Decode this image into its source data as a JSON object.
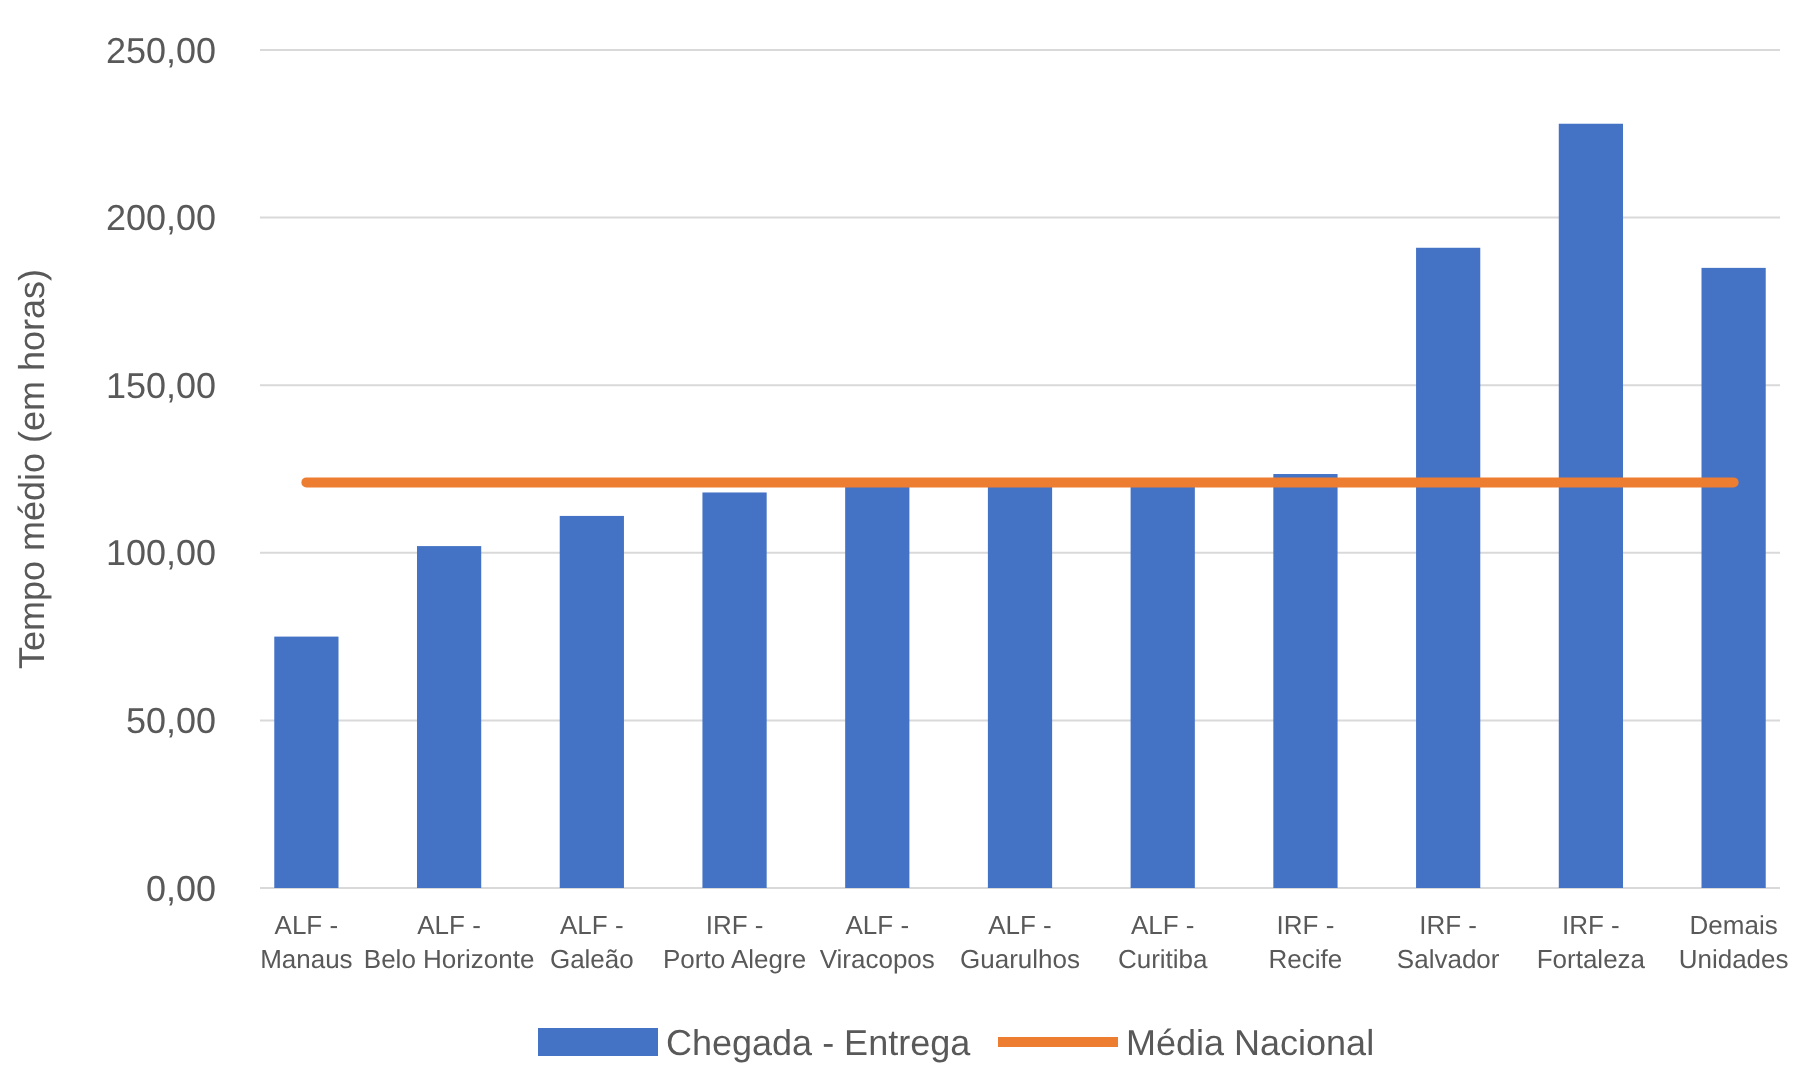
{
  "chart_data": {
    "type": "bar",
    "ylabel": "Tempo médio (em horas)",
    "categories": [
      "ALF - Manaus",
      "ALF - Belo Horizonte",
      "ALF - Galeão",
      "IRF - Porto Alegre",
      "ALF - Viracopos",
      "ALF - Guarulhos",
      "ALF - Curitiba",
      "IRF - Recife",
      "IRF - Salvador",
      "IRF - Fortaleza",
      "Demais Unidades"
    ],
    "series": [
      {
        "name": "Chegada - Entrega",
        "color": "#4472c4",
        "values": [
          75,
          102,
          111,
          118,
          120,
          120,
          120,
          123.5,
          191,
          228,
          185
        ]
      },
      {
        "name": "Média Nacional",
        "type": "line",
        "color": "#ed7d31",
        "values": [
          121,
          121,
          121,
          121,
          121,
          121,
          121,
          121,
          121,
          121,
          121
        ]
      }
    ],
    "ylim": [
      0,
      250
    ],
    "yticks": [
      {
        "value": 0,
        "label": "0,00"
      },
      {
        "value": 50,
        "label": "50,00"
      },
      {
        "value": 100,
        "label": "100,00"
      },
      {
        "value": 150,
        "label": "150,00"
      },
      {
        "value": 200,
        "label": "200,00"
      },
      {
        "value": 250,
        "label": "250,00"
      }
    ],
    "grid": "y",
    "legend": "bottom",
    "marker": "none"
  }
}
